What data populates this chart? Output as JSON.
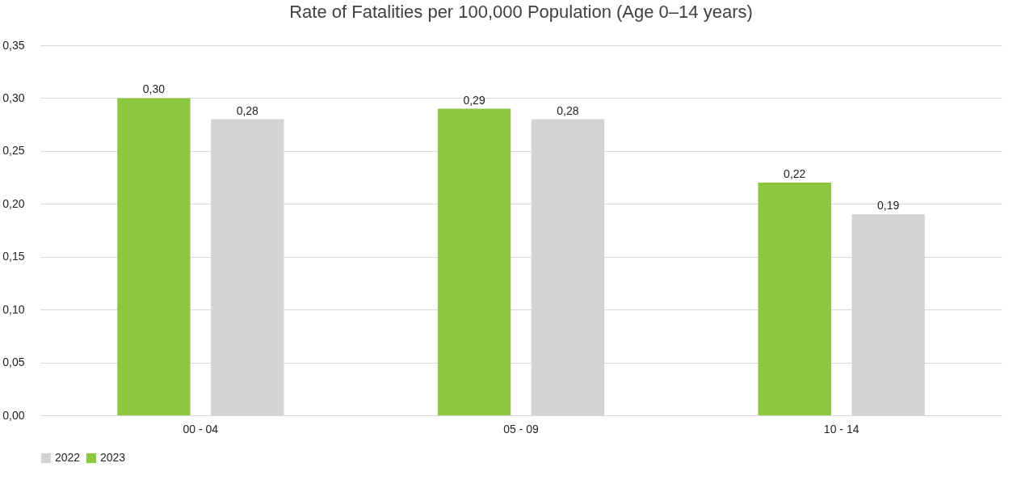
{
  "chart_data": {
    "type": "bar",
    "title": "Rate of Fatalities per 100,000 Population (Age 0–14 years)",
    "categories": [
      "00 - 04",
      "05 - 09",
      "10 - 14"
    ],
    "series": [
      {
        "name": "2022",
        "color": "#d3d4d6",
        "values": [
          0.28,
          0.28,
          0.19
        ],
        "value_labels": [
          "0,28",
          "0,28",
          "0,19"
        ]
      },
      {
        "name": "2023",
        "color": "#8dc63f",
        "values": [
          0.3,
          0.29,
          0.22
        ],
        "value_labels": [
          "0,30",
          "0,29",
          "0,22"
        ]
      }
    ],
    "ylim": [
      0,
      0.35
    ],
    "yticks": [
      {
        "value": 0,
        "label": "0,00"
      },
      {
        "value": 0.05,
        "label": "0,05"
      },
      {
        "value": 0.1,
        "label": "0,10"
      },
      {
        "value": 0.15,
        "label": "0,15"
      },
      {
        "value": 0.2,
        "label": "0,20"
      },
      {
        "value": 0.25,
        "label": "0,25"
      },
      {
        "value": 0.3,
        "label": "0,30"
      },
      {
        "value": 0.35,
        "label": "0,35"
      }
    ],
    "grid": "y",
    "legend": "bottom"
  }
}
